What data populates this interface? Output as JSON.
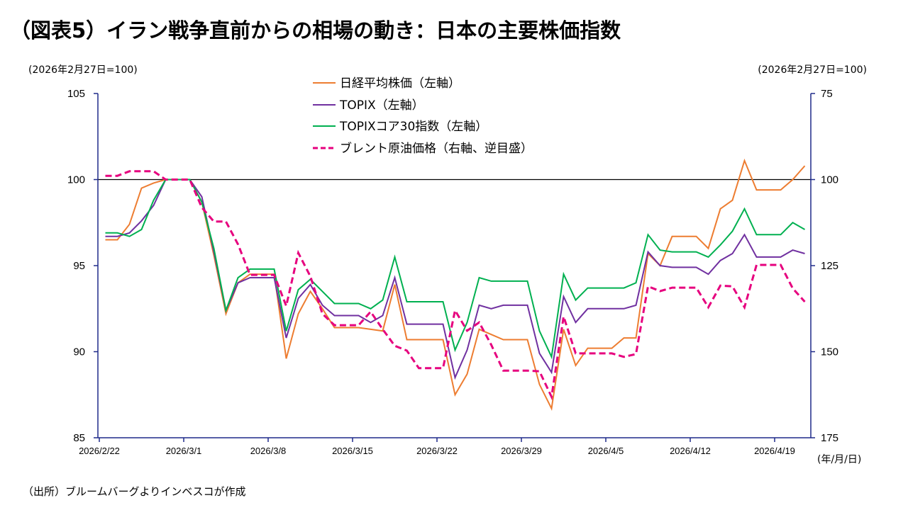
{
  "title": "（図表5）イラン戦争直前からの相場の動き：日本の主要株価指数",
  "unit_left": "(2026年2月27日=100)",
  "unit_right": "(2026年2月27日=100)",
  "x_unit": "(年/月/日)",
  "source": "（出所）ブルームバーグよりインベスコが作成",
  "chart_data": {
    "type": "line",
    "title": "",
    "xlabel": "",
    "ylabel": "",
    "ylim": [
      85,
      105
    ],
    "y_ticks": [
      "105",
      "100",
      "95",
      "90",
      "85"
    ],
    "y2lim": [
      75,
      175
    ],
    "y2_inverted": true,
    "y2_ticks": [
      "75",
      "100",
      "125",
      "150",
      "175"
    ],
    "reference_line": 100,
    "grid": false,
    "legend_position": "top-center",
    "x_ticks": [
      "2026/2/22",
      "2026/3/1",
      "2026/3/8",
      "2026/3/15",
      "2026/3/22",
      "2026/3/29",
      "2026/4/5",
      "2026/4/12",
      "2026/4/19"
    ],
    "x": [
      "2026/2/22",
      "2026/2/23",
      "2026/2/24",
      "2026/2/25",
      "2026/2/26",
      "2026/2/27",
      "2026/2/28",
      "2026/3/1",
      "2026/3/2",
      "2026/3/3",
      "2026/3/4",
      "2026/3/5",
      "2026/3/6",
      "2026/3/7",
      "2026/3/8",
      "2026/3/9",
      "2026/3/10",
      "2026/3/11",
      "2026/3/12",
      "2026/3/13",
      "2026/3/14",
      "2026/3/15",
      "2026/3/16",
      "2026/3/17",
      "2026/3/18",
      "2026/3/19",
      "2026/3/20",
      "2026/3/21",
      "2026/3/22",
      "2026/3/23",
      "2026/3/24",
      "2026/3/25",
      "2026/3/26",
      "2026/3/27",
      "2026/3/28",
      "2026/3/29",
      "2026/3/30",
      "2026/3/31",
      "2026/4/1",
      "2026/4/2",
      "2026/4/3",
      "2026/4/4",
      "2026/4/5",
      "2026/4/6",
      "2026/4/7",
      "2026/4/8",
      "2026/4/9",
      "2026/4/10",
      "2026/4/11",
      "2026/4/12",
      "2026/4/13",
      "2026/4/14",
      "2026/4/15",
      "2026/4/16",
      "2026/4/17",
      "2026/4/18",
      "2026/4/19",
      "2026/4/20",
      "2026/4/21"
    ],
    "series": [
      {
        "name": "日経平均株価（左軸）",
        "axis": "left",
        "color": "#ED7D31",
        "dashed": false,
        "values": [
          96.5,
          96.5,
          97.4,
          99.5,
          99.8,
          100,
          100,
          100,
          98.7,
          95.6,
          92.2,
          94.0,
          94.5,
          94.5,
          94.5,
          89.6,
          92.2,
          93.5,
          92.5,
          91.4,
          91.4,
          91.4,
          91.3,
          91.2,
          93.9,
          90.7,
          90.7,
          90.7,
          90.7,
          87.5,
          88.7,
          91.3,
          91.0,
          90.7,
          90.7,
          90.7,
          88.1,
          86.7,
          91.3,
          89.2,
          90.2,
          90.2,
          90.2,
          90.8,
          90.8,
          95.7,
          95.0,
          96.7,
          96.7,
          96.7,
          96.0,
          98.3,
          98.8,
          101.1,
          99.4,
          99.4,
          99.4,
          100.0,
          100.8
        ]
      },
      {
        "name": "TOPIX（左軸）",
        "axis": "left",
        "color": "#7030A0",
        "dashed": false,
        "values": [
          96.7,
          96.7,
          96.9,
          97.6,
          98.5,
          100,
          100,
          100,
          99.0,
          95.8,
          92.4,
          94.0,
          94.3,
          94.3,
          94.3,
          90.8,
          93.1,
          93.9,
          92.7,
          92.1,
          92.1,
          92.1,
          91.7,
          92.1,
          94.3,
          91.6,
          91.6,
          91.6,
          91.6,
          88.5,
          90.1,
          92.7,
          92.5,
          92.7,
          92.7,
          92.7,
          89.9,
          88.8,
          93.2,
          91.7,
          92.5,
          92.5,
          92.5,
          92.5,
          92.7,
          95.8,
          95.0,
          94.9,
          94.9,
          94.9,
          94.5,
          95.3,
          95.7,
          96.8,
          95.5,
          95.5,
          95.5,
          95.9,
          95.7
        ]
      },
      {
        "name": "TOPIXコア30指数（左軸）",
        "axis": "left",
        "color": "#00B050",
        "dashed": false,
        "values": [
          96.9,
          96.9,
          96.7,
          97.1,
          98.8,
          100,
          100,
          100,
          98.7,
          96.0,
          92.4,
          94.3,
          94.8,
          94.8,
          94.8,
          91.2,
          93.6,
          94.2,
          93.5,
          92.8,
          92.8,
          92.8,
          92.5,
          93.0,
          95.5,
          92.9,
          92.9,
          92.9,
          92.9,
          90.1,
          91.7,
          94.3,
          94.1,
          94.1,
          94.1,
          94.1,
          91.2,
          89.7,
          94.5,
          93.0,
          93.7,
          93.7,
          93.7,
          93.7,
          94.0,
          96.8,
          95.9,
          95.8,
          95.8,
          95.8,
          95.5,
          96.2,
          97.0,
          98.3,
          96.8,
          96.8,
          96.8,
          97.5,
          97.1
        ]
      },
      {
        "name": "ブレント原油価格（右軸、逆目盛）",
        "axis": "right",
        "color": "#E6007E",
        "dashed": true,
        "values": [
          98.9,
          98.9,
          97.6,
          97.6,
          97.6,
          100,
          100,
          100,
          108.1,
          112.2,
          112.2,
          118.8,
          127.7,
          127.7,
          127.7,
          136.7,
          121.3,
          128.1,
          139.0,
          142.3,
          142.3,
          142.3,
          138.4,
          143.5,
          148.3,
          149.7,
          154.8,
          154.8,
          154.8,
          138.0,
          143.9,
          141.5,
          148.0,
          155.5,
          155.5,
          155.5,
          155.7,
          163.1,
          139.8,
          150.5,
          150.5,
          150.5,
          150.5,
          151.5,
          150.7,
          131.0,
          132.4,
          131.4,
          131.4,
          131.4,
          137.1,
          130.8,
          131.0,
          137.1,
          124.8,
          124.8,
          124.8,
          131.6,
          135.5
        ]
      }
    ]
  }
}
